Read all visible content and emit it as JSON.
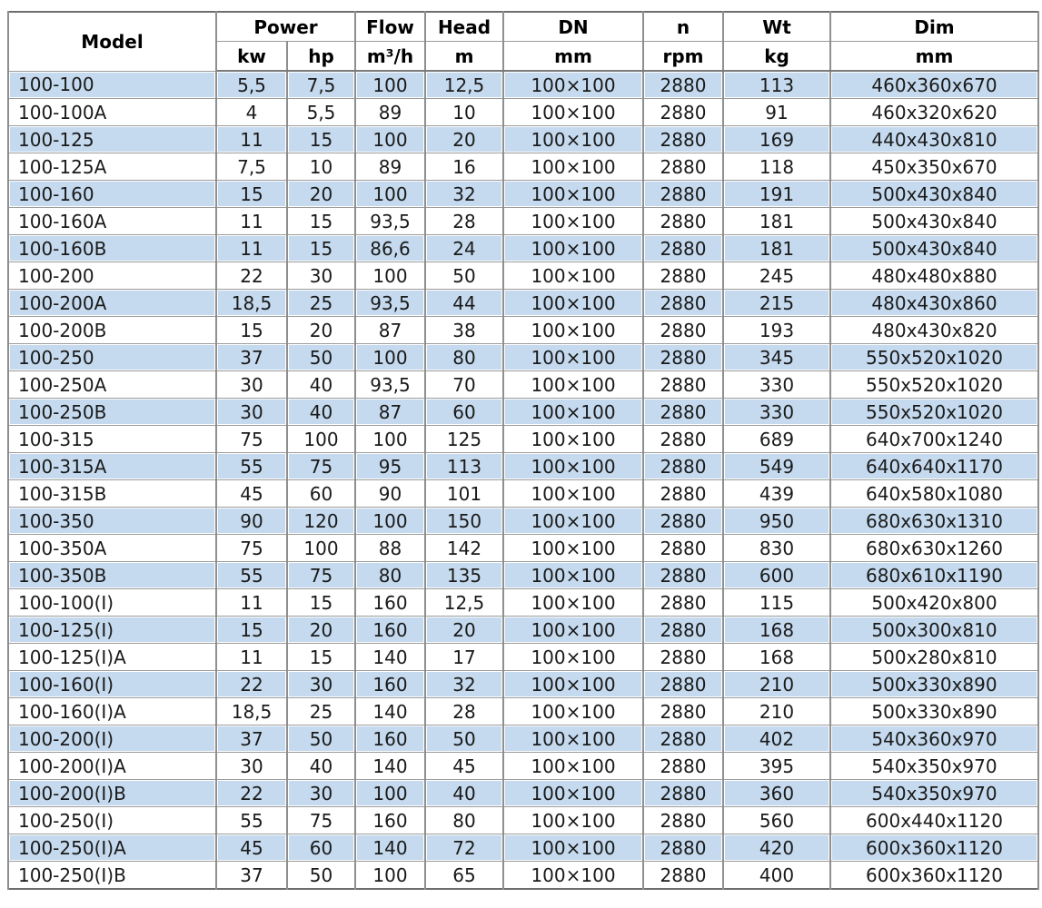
{
  "table": {
    "header": {
      "row1": [
        "Model",
        "Power",
        "Flow",
        "Head",
        "DN",
        "n",
        "Wt",
        "Dim"
      ],
      "row2": [
        "kw",
        "hp",
        "m³/h",
        "m",
        "mm",
        "rpm",
        "kg",
        "mm"
      ]
    },
    "rows": [
      [
        "100-100",
        "5,5",
        "7,5",
        "100",
        "12,5",
        "100×100",
        "2880",
        "113",
        "460x360x670"
      ],
      [
        "100-100A",
        "4",
        "5,5",
        "89",
        "10",
        "100×100",
        "2880",
        "91",
        "460x320x620"
      ],
      [
        "100-125",
        "11",
        "15",
        "100",
        "20",
        "100×100",
        "2880",
        "169",
        "440x430x810"
      ],
      [
        "100-125A",
        "7,5",
        "10",
        "89",
        "16",
        "100×100",
        "2880",
        "118",
        "450x350x670"
      ],
      [
        "100-160",
        "15",
        "20",
        "100",
        "32",
        "100×100",
        "2880",
        "191",
        "500x430x840"
      ],
      [
        "100-160A",
        "11",
        "15",
        "93,5",
        "28",
        "100×100",
        "2880",
        "181",
        "500x430x840"
      ],
      [
        "100-160B",
        "11",
        "15",
        "86,6",
        "24",
        "100×100",
        "2880",
        "181",
        "500x430x840"
      ],
      [
        "100-200",
        "22",
        "30",
        "100",
        "50",
        "100×100",
        "2880",
        "245",
        "480x480x880"
      ],
      [
        "100-200A",
        "18,5",
        "25",
        "93,5",
        "44",
        "100×100",
        "2880",
        "215",
        "480x430x860"
      ],
      [
        "100-200B",
        "15",
        "20",
        "87",
        "38",
        "100×100",
        "2880",
        "193",
        "480x430x820"
      ],
      [
        "100-250",
        "37",
        "50",
        "100",
        "80",
        "100×100",
        "2880",
        "345",
        "550x520x1020"
      ],
      [
        "100-250A",
        "30",
        "40",
        "93,5",
        "70",
        "100×100",
        "2880",
        "330",
        "550x520x1020"
      ],
      [
        "100-250B",
        "30",
        "40",
        "87",
        "60",
        "100×100",
        "2880",
        "330",
        "550x520x1020"
      ],
      [
        "100-315",
        "75",
        "100",
        "100",
        "125",
        "100×100",
        "2880",
        "689",
        "640x700x1240"
      ],
      [
        "100-315A",
        "55",
        "75",
        "95",
        "113",
        "100×100",
        "2880",
        "549",
        "640x640x1170"
      ],
      [
        "100-315B",
        "45",
        "60",
        "90",
        "101",
        "100×100",
        "2880",
        "439",
        "640x580x1080"
      ],
      [
        "100-350",
        "90",
        "120",
        "100",
        "150",
        "100×100",
        "2880",
        "950",
        "680x630x1310"
      ],
      [
        "100-350A",
        "75",
        "100",
        "88",
        "142",
        "100×100",
        "2880",
        "830",
        "680x630x1260"
      ],
      [
        "100-350B",
        "55",
        "75",
        "80",
        "135",
        "100×100",
        "2880",
        "600",
        "680x610x1190"
      ],
      [
        "100-100(I)",
        "11",
        "15",
        "160",
        "12,5",
        "100×100",
        "2880",
        "115",
        "500x420x800"
      ],
      [
        "100-125(I)",
        "15",
        "20",
        "160",
        "20",
        "100×100",
        "2880",
        "168",
        "500x300x810"
      ],
      [
        "100-125(I)A",
        "11",
        "15",
        "140",
        "17",
        "100×100",
        "2880",
        "168",
        "500x280x810"
      ],
      [
        "100-160(I)",
        "22",
        "30",
        "160",
        "32",
        "100×100",
        "2880",
        "210",
        "500x330x890"
      ],
      [
        "100-160(I)A",
        "18,5",
        "25",
        "140",
        "28",
        "100×100",
        "2880",
        "210",
        "500x330x890"
      ],
      [
        "100-200(I)",
        "37",
        "50",
        "160",
        "50",
        "100×100",
        "2880",
        "402",
        "540x360x970"
      ],
      [
        "100-200(I)A",
        "30",
        "40",
        "140",
        "45",
        "100×100",
        "2880",
        "395",
        "540x350x970"
      ],
      [
        "100-200(I)B",
        "22",
        "30",
        "100",
        "40",
        "100×100",
        "2880",
        "360",
        "540x350x970"
      ],
      [
        "100-250(I)",
        "55",
        "75",
        "160",
        "80",
        "100×100",
        "2880",
        "560",
        "600x440x1120"
      ],
      [
        "100-250(I)A",
        "45",
        "60",
        "140",
        "72",
        "100×100",
        "2880",
        "420",
        "600x360x1120"
      ],
      [
        "100-250(I)B",
        "37",
        "50",
        "100",
        "65",
        "100×100",
        "2880",
        "400",
        "600x360x1120"
      ]
    ]
  },
  "colors": {
    "row_highlight": "#c5daee",
    "grid_line": "#8f8f8f",
    "outer_border": "#6e6e6e",
    "header_text": "#000000",
    "cell_text": "#1a1a1a",
    "background": "#ffffff"
  }
}
